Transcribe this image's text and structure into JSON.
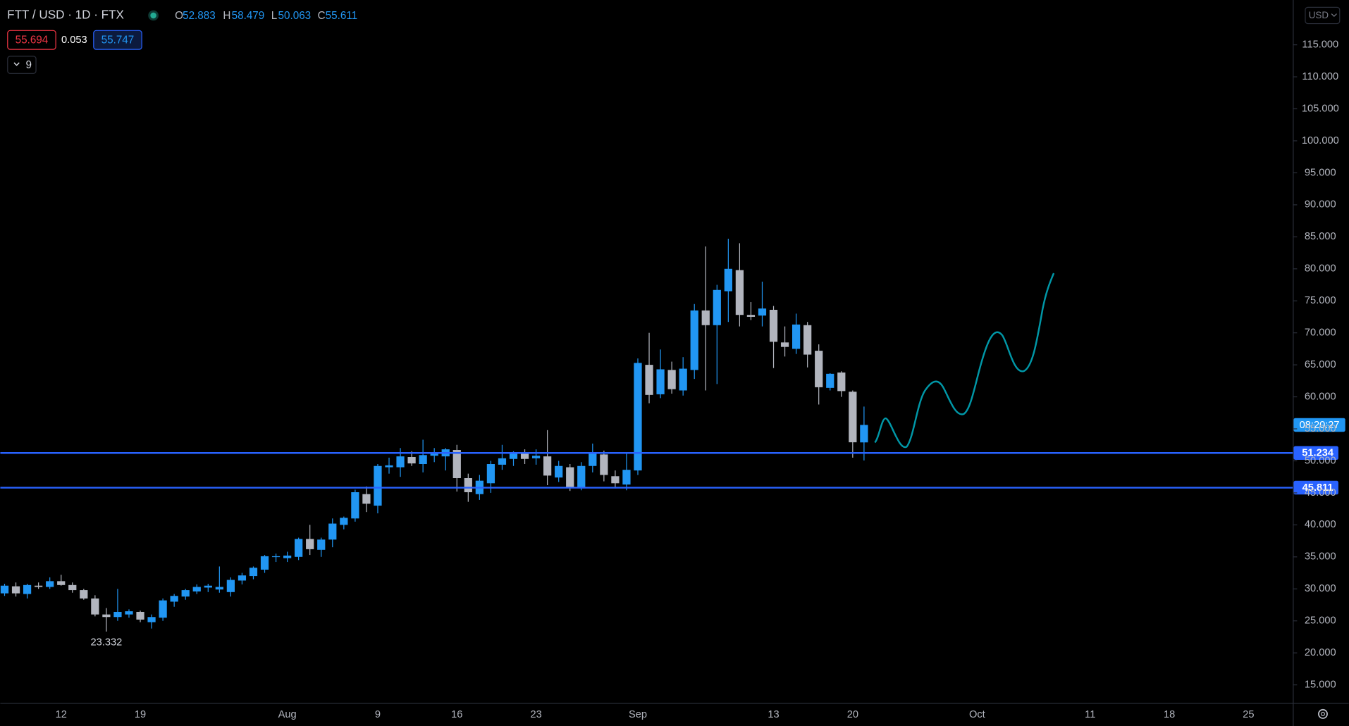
{
  "chart_data": {
    "type": "candlestick",
    "title": "FTT / USD · 1D · FTX",
    "ohlc_readout": [
      {
        "label": "O",
        "value": 52.883
      },
      {
        "label": "H",
        "value": 58.479
      },
      {
        "label": "L",
        "value": 50.063
      },
      {
        "label": "C",
        "value": 55.611
      }
    ],
    "sell_price": 55.694,
    "spread": 0.053,
    "buy_price": 55.747,
    "indicators_toggle": "9",
    "currency": "USD",
    "countdown": "08:20:27",
    "low_annotation": 23.332,
    "price_lines": [
      51.234,
      45.811
    ],
    "up_color": "#2196f3",
    "down_color": "#b2b5be",
    "line_color": "#2962ff",
    "categories": [
      null,
      null,
      null,
      null,
      null,
      "12",
      null,
      null,
      null,
      null,
      null,
      null,
      "19",
      null,
      null,
      null,
      null,
      null,
      null,
      null,
      null,
      null,
      null,
      null,
      null,
      "Aug",
      null,
      null,
      null,
      null,
      null,
      null,
      null,
      "9",
      null,
      null,
      null,
      null,
      null,
      null,
      "16",
      null,
      null,
      null,
      null,
      null,
      null,
      "23",
      null,
      null,
      null,
      null,
      null,
      null,
      null,
      null,
      "Sep",
      null,
      null,
      null,
      null,
      null,
      null,
      null,
      null,
      null,
      null,
      null,
      "13",
      null,
      null,
      null,
      null,
      null,
      null,
      "20",
      null,
      null,
      null,
      null,
      null,
      null,
      null,
      null,
      null,
      null,
      "Oct",
      null,
      null,
      null,
      null,
      null,
      null,
      null,
      null,
      null,
      "11",
      null,
      null,
      null,
      null,
      null,
      null,
      "18",
      null,
      null,
      null,
      null,
      null,
      null,
      "25",
      null,
      null,
      null
    ],
    "open": [
      29.3,
      30.4,
      29.2,
      30.5,
      30.3,
      31.2,
      30.6,
      29.8,
      28.5,
      26,
      25.6,
      26,
      26.4,
      24.8,
      25.5,
      28,
      28.8,
      29.6,
      30.2,
      29.9,
      29.5,
      31.3,
      32,
      33,
      35,
      34.8,
      35,
      37.8,
      36.1,
      37.7,
      40,
      41,
      44.8,
      43,
      49,
      49,
      50.6,
      49.5,
      50.8,
      50.7,
      51.7,
      47.3,
      44.8,
      46.5,
      49.4,
      50.3,
      51.1,
      50.4,
      50.7,
      47.4,
      49,
      45.7,
      49.2,
      51,
      47.6,
      46.3,
      48.5,
      65,
      60.4,
      64.2,
      61,
      64.2,
      73.5,
      71.2,
      76.5,
      79.8,
      72.8,
      72.7,
      73.6,
      68.5,
      67.5,
      71.2,
      67.2,
      61.4,
      63.8,
      60.8,
      52.883,
      null,
      null,
      null,
      null,
      null,
      null,
      null,
      null,
      null,
      null,
      null,
      null,
      null,
      null,
      null,
      null,
      null,
      null,
      null,
      null,
      null,
      null,
      null,
      null,
      null,
      null,
      null,
      null,
      null,
      null,
      null,
      null,
      null,
      null,
      null,
      null,
      null
    ],
    "high": [
      30.8,
      31,
      30.8,
      31,
      31.8,
      32.2,
      31,
      30,
      29,
      27,
      30,
      26.8,
      26.6,
      26,
      28.5,
      29.2,
      30,
      30.7,
      30.8,
      33.5,
      31.8,
      32.5,
      33.5,
      35.3,
      35.5,
      35.8,
      38,
      40,
      38,
      41,
      41.3,
      45.5,
      46,
      49.5,
      50.5,
      52,
      51.5,
      53.3,
      52,
      52,
      52.5,
      48,
      47.8,
      50,
      52.5,
      51.5,
      51.8,
      51.8,
      54.8,
      50,
      49.5,
      49.8,
      52.7,
      51.6,
      48.5,
      51.3,
      66,
      70,
      67.4,
      65.5,
      66.2,
      74.5,
      83.5,
      77.5,
      84.7,
      84,
      74.8,
      78,
      74.2,
      71,
      73,
      71.7,
      68.2,
      63.7,
      64,
      61,
      58.479,
      null,
      null,
      null,
      null,
      null,
      null,
      null,
      null,
      null,
      null,
      null,
      null,
      null,
      null,
      null,
      null,
      null,
      null,
      null,
      null,
      null,
      null,
      null,
      null,
      null,
      null,
      null,
      null,
      null,
      null,
      null,
      null,
      null,
      null,
      null,
      null,
      null
    ],
    "low": [
      28.9,
      28.8,
      28.5,
      30,
      30,
      30.5,
      29.4,
      28.3,
      25.7,
      23.332,
      25,
      25.5,
      24.8,
      23.8,
      25,
      27.2,
      28.3,
      29.2,
      29.5,
      29.4,
      28.8,
      30.7,
      31.5,
      32.5,
      34.2,
      34.2,
      34.5,
      35.3,
      35,
      36.5,
      39.3,
      40.5,
      42,
      41.8,
      48,
      47.5,
      49.2,
      48.2,
      49.8,
      48.5,
      45.2,
      43.6,
      43.9,
      45,
      48.6,
      49.2,
      49.5,
      49.4,
      46.2,
      46.7,
      45.3,
      45.4,
      48.2,
      46.8,
      45.7,
      45.4,
      47.8,
      59,
      59.8,
      60.5,
      60.2,
      62.8,
      61,
      62,
      71.7,
      71,
      72,
      71,
      64.5,
      66.3,
      66.7,
      64.6,
      58.8,
      61,
      60,
      50.5,
      50.063,
      null,
      null,
      null,
      null,
      null,
      null,
      null,
      null,
      null,
      null,
      null,
      null,
      null,
      null,
      null,
      null,
      null,
      null,
      null,
      null,
      null,
      null,
      null,
      null,
      null,
      null,
      null,
      null,
      null,
      null,
      null,
      null,
      null,
      null,
      null,
      null,
      null
    ],
    "close": [
      30.5,
      29.3,
      30.6,
      30.3,
      31.2,
      30.6,
      29.8,
      28.5,
      26,
      25.6,
      26.4,
      26.5,
      25.2,
      25.6,
      28.2,
      28.9,
      29.8,
      30.3,
      30.5,
      30.3,
      31.4,
      32.1,
      33.3,
      35.1,
      35.1,
      35.2,
      37.8,
      36.2,
      37.7,
      40.2,
      41.1,
      45.1,
      43.3,
      49.2,
      49.3,
      50.7,
      49.6,
      50.9,
      51.2,
      51.8,
      47.3,
      45.1,
      46.9,
      49.5,
      50.4,
      51.1,
      50.3,
      50.8,
      47.7,
      49.2,
      45.9,
      49.2,
      51.1,
      47.8,
      46.5,
      48.6,
      65.3,
      60.3,
      64.3,
      61.2,
      64.4,
      73.5,
      71.2,
      76.7,
      80,
      72.8,
      72.5,
      73.8,
      68.6,
      67.8,
      71.3,
      66.6,
      61.5,
      63.6,
      60.9,
      52.9,
      55.611,
      null,
      null,
      null,
      null,
      null,
      null,
      null,
      null,
      null,
      null,
      null,
      null,
      null,
      null,
      null,
      null,
      null,
      null,
      null,
      null,
      null,
      null,
      null,
      null,
      null,
      null,
      null,
      null,
      null,
      null,
      null,
      null,
      null,
      null,
      null,
      null,
      null
    ],
    "ylim": [
      12.2,
      122
    ],
    "yticks": [
      {
        "value": 15,
        "label": "15.000"
      },
      {
        "value": 20,
        "label": "20.000"
      },
      {
        "value": 25,
        "label": "25.000"
      },
      {
        "value": 30,
        "label": "30.000"
      },
      {
        "value": 35,
        "label": "35.000"
      },
      {
        "value": 40,
        "label": "40.000"
      },
      {
        "value": 45,
        "label": "45.000"
      },
      {
        "value": 50,
        "label": "50.000"
      },
      {
        "value": 55,
        "label": "55.000"
      },
      {
        "value": 60,
        "label": "60.000"
      },
      {
        "value": 65,
        "label": "65.000"
      },
      {
        "value": 70,
        "label": "70.000"
      },
      {
        "value": 75,
        "label": "75.000"
      },
      {
        "value": 80,
        "label": "80.000"
      },
      {
        "value": 85,
        "label": "85.000"
      },
      {
        "value": 90,
        "label": "90.000"
      },
      {
        "value": 95,
        "label": "95.000"
      },
      {
        "value": 100,
        "label": "100.000"
      },
      {
        "value": 105,
        "label": "105.000"
      },
      {
        "value": 110,
        "label": "110.000"
      },
      {
        "value": 115,
        "label": "115.000"
      }
    ]
  }
}
